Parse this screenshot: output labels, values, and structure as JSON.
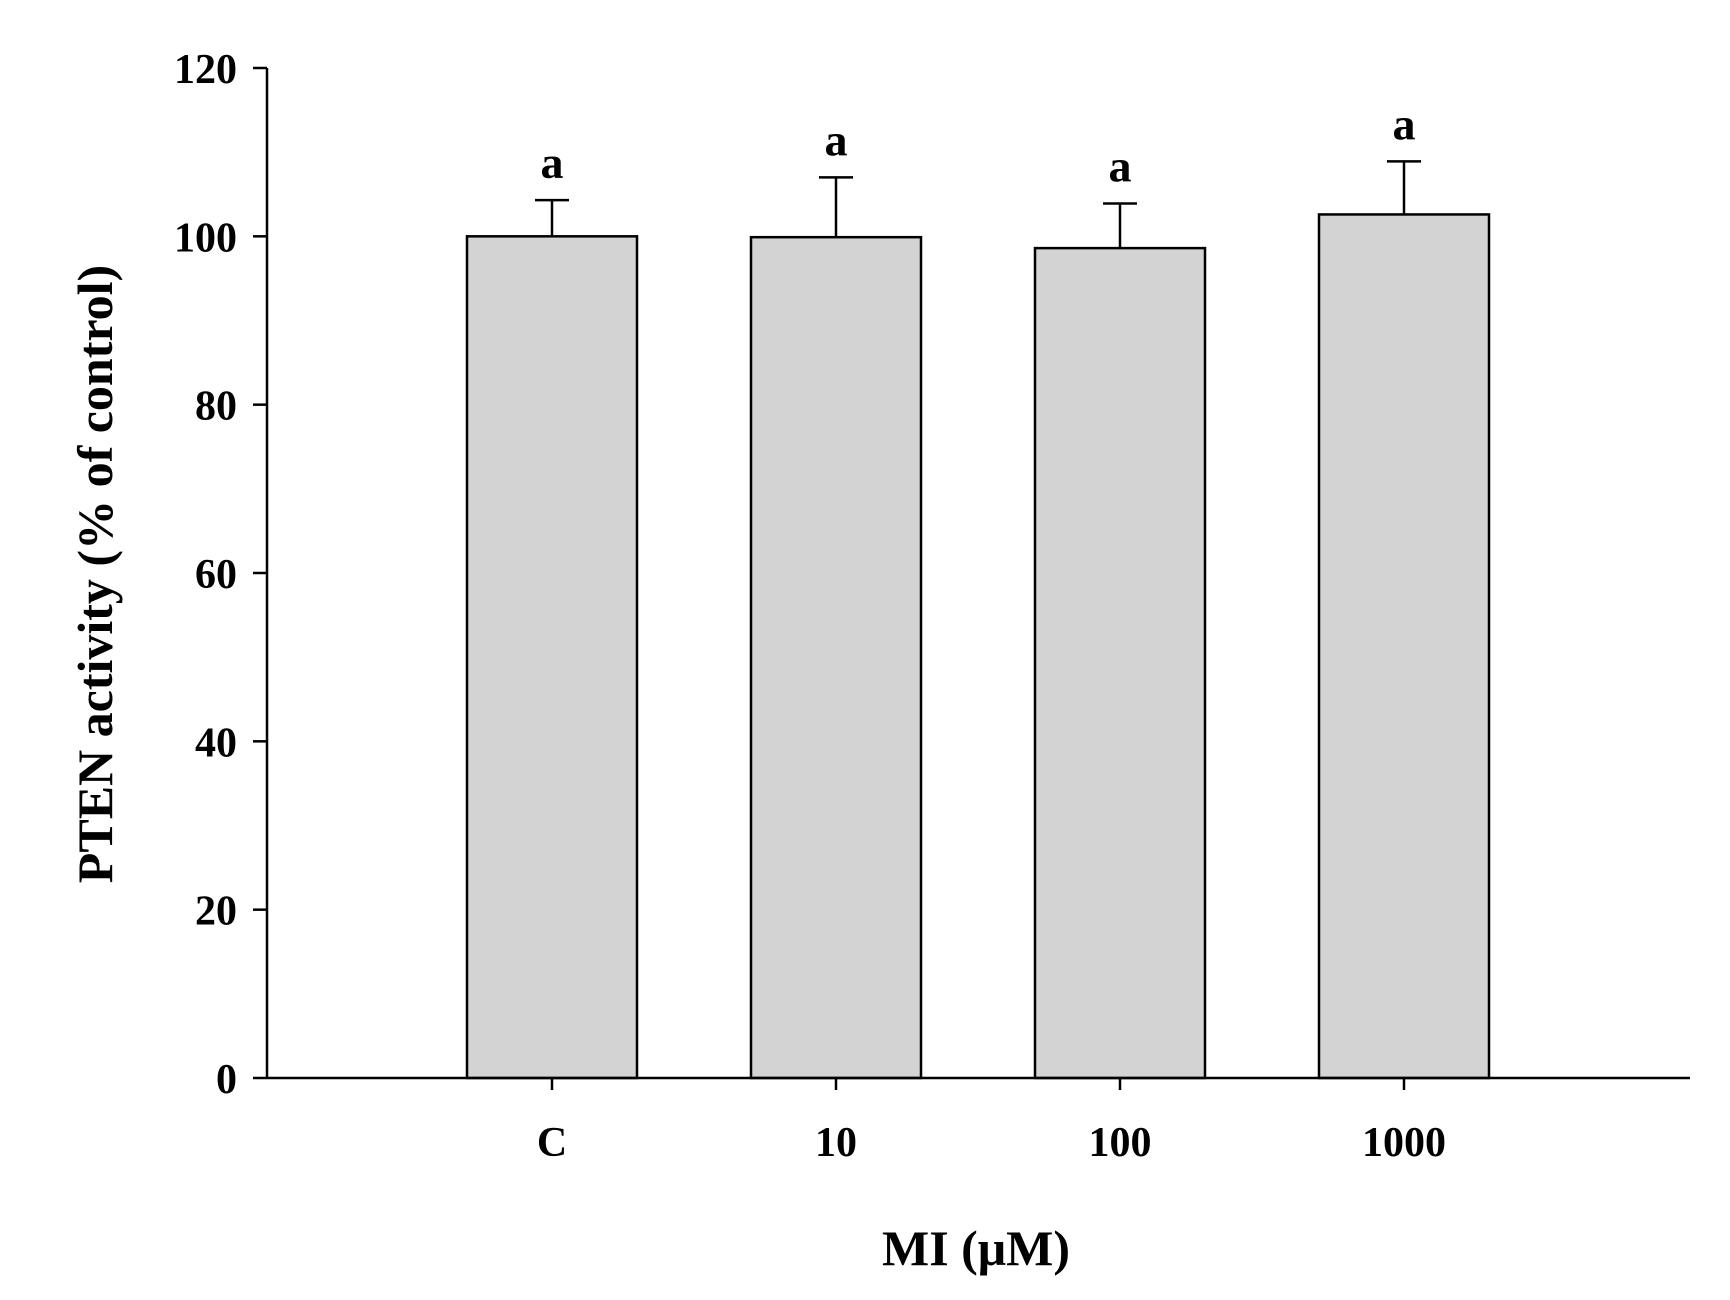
{
  "chart_data": {
    "type": "bar",
    "title": "",
    "xlabel": "MI (μM)",
    "ylabel": "PTEN activity (% of control)",
    "ylim": [
      0,
      120
    ],
    "yticks": [
      0,
      20,
      40,
      60,
      80,
      100,
      120
    ],
    "grid": false,
    "categories": [
      "C",
      "10",
      "100",
      "1000"
    ],
    "values": [
      100.0,
      99.9,
      98.6,
      102.6
    ],
    "error": [
      4.3,
      7.1,
      5.3,
      6.3
    ],
    "annotations": [
      "a",
      "a",
      "a",
      "a"
    ],
    "bar_color": "#d3d3d3",
    "edge_color": "#000000"
  }
}
